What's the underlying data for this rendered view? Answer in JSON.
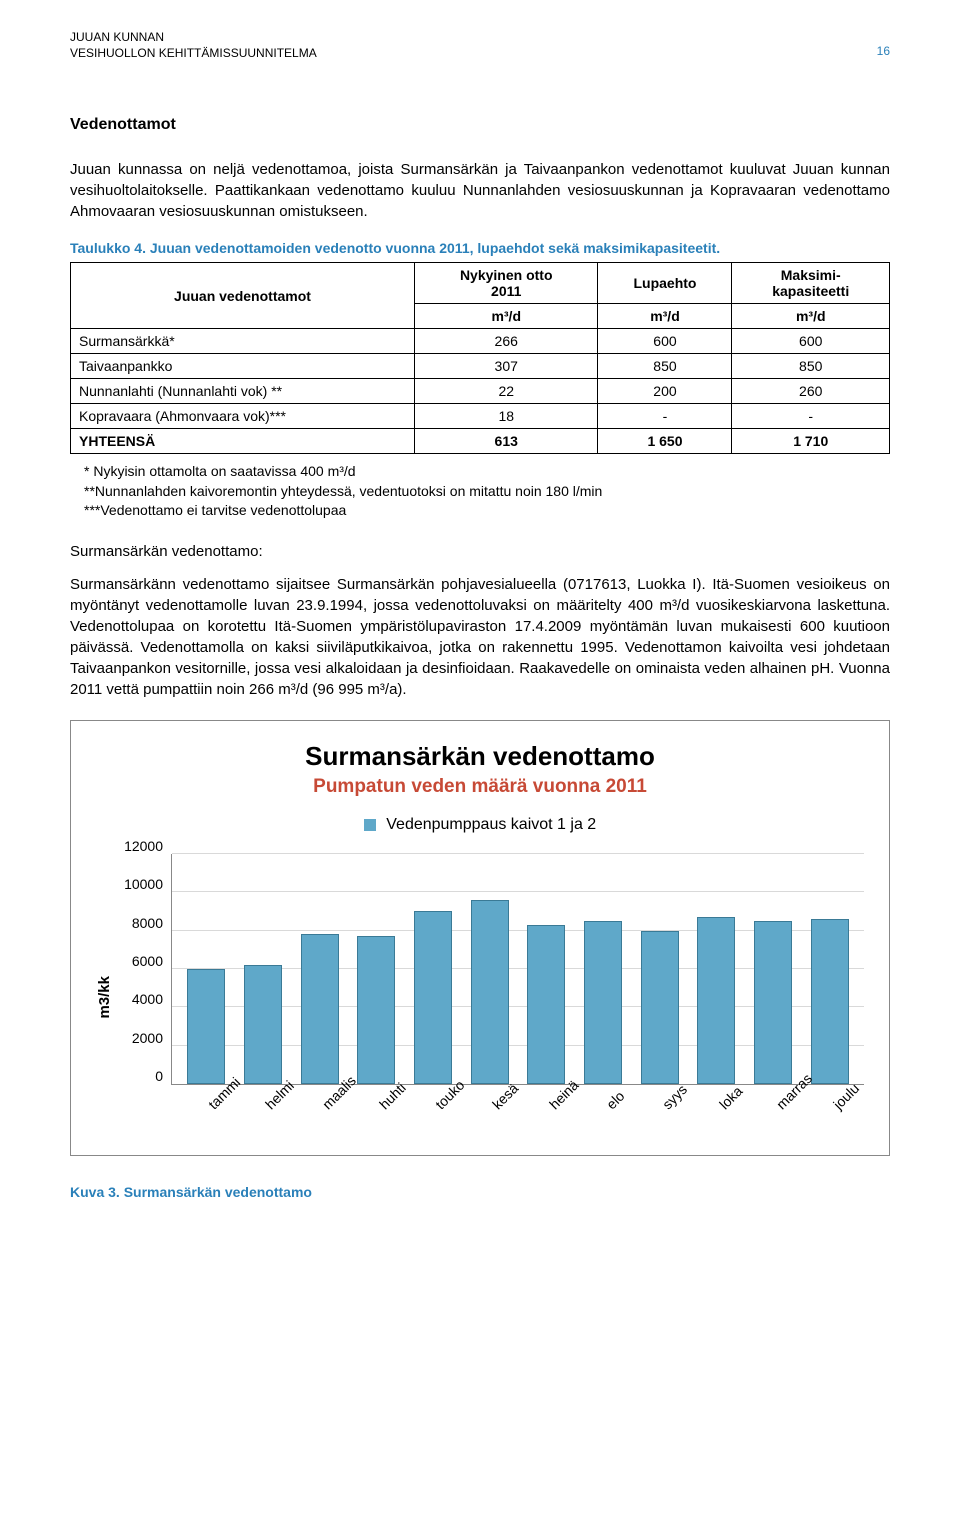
{
  "header": {
    "line1": "JUUAN KUNNAN",
    "line2": "VESIHUOLLON KEHITTÄMISSUUNNITELMA",
    "page_number": "16"
  },
  "section_title": "Vedenottamot",
  "para1": "Juuan kunnassa on neljä vedenottamoa, joista Surmansärkän ja Taivaanpankon vedenottamot kuuluvat Juuan kunnan vesihuoltolaitokselle. Paattikankaan vedenottamo kuuluu Nunnanlahden vesiosuuskunnan ja Kopravaaran vedenottamo Ahmovaaran vesiosuuskunnan omistukseen.",
  "table_caption": "Taulukko 4. Juuan vedenottamoiden vedenotto vuonna 2011, lupaehdot sekä maksimikapasiteetit.",
  "table": {
    "col_label_0": "Juuan vedenottamot",
    "col_label_1a": "Nykyinen otto",
    "col_label_1b": "2011",
    "col_label_2": "Lupaehto",
    "col_label_3a": "Maksimi-",
    "col_label_3b": "kapasiteetti",
    "unit": "m³/d",
    "rows": [
      {
        "name": "Surmansärkkä*",
        "c1": "266",
        "c2": "600",
        "c3": "600"
      },
      {
        "name": "Taivaanpankko",
        "c1": "307",
        "c2": "850",
        "c3": "850"
      },
      {
        "name": "Nunnanlahti (Nunnanlahti vok) **",
        "c1": "22",
        "c2": "200",
        "c3": "260"
      },
      {
        "name": "Kopravaara (Ahmonvaara vok)***",
        "c1": "18",
        "c2": "-",
        "c3": "-"
      }
    ],
    "total": {
      "name": "YHTEENSÄ",
      "c1": "613",
      "c2": "1 650",
      "c3": "1 710"
    }
  },
  "footnotes": {
    "f1": "* Nykyisin ottamolta on saatavissa 400 m³/d",
    "f2": "**Nunnanlahden kaivoremontin yhteydessä, vedentuotoksi on mitattu noin 180 l/min",
    "f3": "***Vedenottamo ei tarvitse vedenottolupaa"
  },
  "sub_title": "Surmansärkän vedenottamo:",
  "para2": "Surmansärkänn vedenottamo sijaitsee Surmansärkän pohjavesialueella (0717613, Luokka I). Itä-Suomen vesioikeus on myöntänyt vedenottamolle luvan 23.9.1994, jossa vedenottoluvaksi on määritelty 400 m³/d vuosikeskiarvona laskettuna. Vedenottolupaa on korotettu Itä-Suomen ympäristölupaviraston 17.4.2009 myöntämän luvan mukaisesti 600 kuutioon päivässä. Vedenottamolla on kaksi siiviläputkikaivoa, jotka on rakennettu 1995. Vedenottamon kaivoilta vesi johdetaan Taivaanpankon vesitornille, jossa vesi alkaloidaan ja desinfioidaan. Raakavedelle on ominaista veden alhainen pH. Vuonna 2011 vettä pumpattiin noin 266 m³/d (96 995 m³/a).",
  "chart": {
    "title": "Surmansärkän vedenottamo",
    "subtitle": "Pumpatun veden määrä vuonna 2011",
    "legend_label": "Vedenpumppaus kaivot 1 ja 2",
    "legend_color": "#5fa8c9",
    "bar_color": "#5fa8c9",
    "bar_border": "#3a7a96",
    "y_axis_label": "m3/kk",
    "y_max": 12000,
    "y_ticks": [
      0,
      2000,
      4000,
      6000,
      8000,
      10000,
      12000
    ],
    "grid_color": "#d9d9d9",
    "axis_color": "#888888",
    "categories": [
      "tammi",
      "helmi",
      "maalis",
      "huhti",
      "touko",
      "kesä",
      "heinä",
      "elo",
      "syys",
      "loka",
      "marras",
      "joulu"
    ],
    "values": [
      6000,
      6200,
      7800,
      7700,
      9000,
      9600,
      8300,
      8500,
      8000,
      8700,
      8500,
      8600
    ]
  },
  "figure_caption": "Kuva 3. Surmansärkän vedenottamo"
}
